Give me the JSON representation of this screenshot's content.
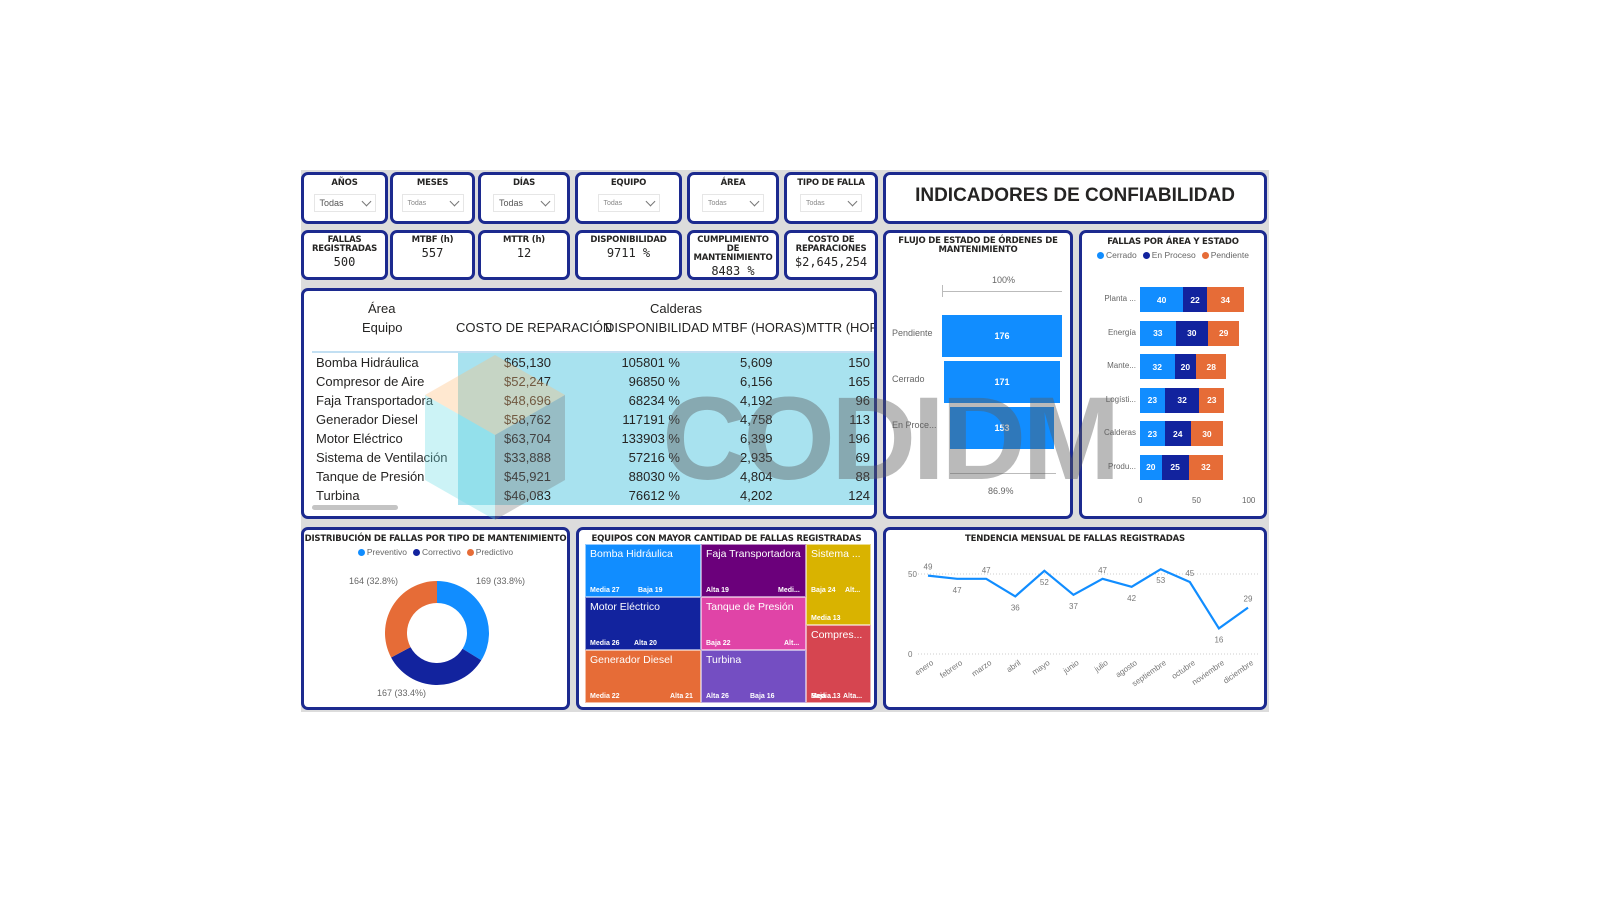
{
  "dashboard": {
    "title": "INDICADORES DE CONFIABILIDAD",
    "watermark": "CODIDM"
  },
  "slicers": [
    {
      "label": "AÑOS",
      "value": "Todas"
    },
    {
      "label": "MESES",
      "value": "Todas"
    },
    {
      "label": "DÍAS",
      "value": "Todas"
    },
    {
      "label": "EQUIPO",
      "value": "Todas"
    },
    {
      "label": "ÁREA",
      "value": "Todas"
    },
    {
      "label": "TIPO DE FALLA",
      "value": "Todas"
    }
  ],
  "kpis": [
    {
      "label": "FALLAS REGISTRADAS",
      "value": "500"
    },
    {
      "label": "MTBF (h)",
      "value": "557"
    },
    {
      "label": "MTTR (h)",
      "value": "12"
    },
    {
      "label": "DISPONIBILIDAD",
      "value": "9711 %"
    },
    {
      "label": "CUMPLIMIENTO DE MANTENIMIENTO",
      "value": "8483 %"
    },
    {
      "label": "COSTO DE REPARACIONES",
      "value": "$2,645,254"
    }
  ],
  "matrix": {
    "row_header_1": "Área",
    "row_header_2": "Equipo",
    "column_group": "Calderas",
    "columns": [
      "COSTO DE REPARACIÓN",
      "DISPONIBILIDAD",
      "MTBF (HORAS)",
      "MTTR (HOF"
    ],
    "rows": [
      {
        "equipo": "Bomba Hidráulica",
        "costo": "$65,130",
        "disp": "105801 %",
        "mtbf": "5,609",
        "mttr": "150"
      },
      {
        "equipo": "Compresor de Aire",
        "costo": "$52,247",
        "disp": "96850 %",
        "mtbf": "6,156",
        "mttr": "165"
      },
      {
        "equipo": "Faja Transportadora",
        "costo": "$48,696",
        "disp": "68234 %",
        "mtbf": "4,192",
        "mttr": "96"
      },
      {
        "equipo": "Generador Diesel",
        "costo": "$58,762",
        "disp": "117191 %",
        "mtbf": "4,758",
        "mttr": "113"
      },
      {
        "equipo": "Motor Eléctrico",
        "costo": "$63,704",
        "disp": "133903 %",
        "mtbf": "6,399",
        "mttr": "196"
      },
      {
        "equipo": "Sistema de Ventilación",
        "costo": "$33,888",
        "disp": "57216 %",
        "mtbf": "2,935",
        "mttr": "69"
      },
      {
        "equipo": "Tanque de Presión",
        "costo": "$45,921",
        "disp": "88030 %",
        "mtbf": "4,804",
        "mttr": "88"
      },
      {
        "equipo": "Turbina",
        "costo": "$46,083",
        "disp": "76612 %",
        "mtbf": "4,202",
        "mttr": "124"
      }
    ]
  },
  "chart_data": [
    {
      "type": "funnel",
      "title": "FLUJO DE ESTADO DE ÓRDENES DE MANTENIMIENTO",
      "categories": [
        "Pendiente",
        "Cerrado",
        "En Proce..."
      ],
      "values": [
        176,
        171,
        153
      ],
      "top_label": "100%",
      "bottom_label": "86.9%",
      "color": "#118dff"
    },
    {
      "type": "bar",
      "orientation": "horizontal",
      "stacked": true,
      "title": "FALLAS POR ÁREA Y ESTADO",
      "categories": [
        "Planta ...",
        "Energía",
        "Mante...",
        "Logísti...",
        "Calderas",
        "Produ..."
      ],
      "series": [
        {
          "name": "Cerrado",
          "color": "#118dff",
          "values": [
            40,
            33,
            32,
            23,
            23,
            20
          ]
        },
        {
          "name": "En Proceso",
          "color": "#12239e",
          "values": [
            22,
            30,
            20,
            32,
            24,
            25
          ]
        },
        {
          "name": "Pendiente",
          "color": "#e66c37",
          "values": [
            34,
            29,
            28,
            23,
            30,
            32
          ]
        }
      ],
      "xticks": [
        "0",
        "50",
        "100"
      ],
      "xlim": [
        0,
        100
      ],
      "legend_position": "top"
    },
    {
      "type": "pie",
      "donut": true,
      "title": "DISTRIBUCIÓN DE FALLAS POR TIPO DE MANTENIMIENTO",
      "categories": [
        "Preventivo",
        "Correctivo",
        "Predictivo"
      ],
      "values": [
        169,
        167,
        164
      ],
      "labels": [
        "169 (33.8%)",
        "167 (33.4%)",
        "164 (32.8%)"
      ],
      "colors": [
        "#118dff",
        "#12239e",
        "#e66c37"
      ],
      "legend_position": "top"
    },
    {
      "type": "treemap",
      "title": "EQUIPOS CON MAYOR CANTIDAD DE FALLAS REGISTRADAS",
      "groups": [
        {
          "name": "Bomba Hidráulica",
          "color": "#118dff",
          "children": [
            "Media 27",
            "Baja 19"
          ]
        },
        {
          "name": "Faja Transportadora",
          "color": "#6b007b",
          "children": [
            "Alta 19",
            "Medi..."
          ]
        },
        {
          "name": "Sistema ...",
          "color": "#d9b300",
          "children": [
            "Baja 24",
            "Alt...",
            "Media 13"
          ]
        },
        {
          "name": "Motor Eléctrico",
          "color": "#12239e",
          "children": [
            "Media 26",
            "Alta 20"
          ]
        },
        {
          "name": "Tanque de Presión",
          "color": "#e044a7",
          "children": [
            "Baja 22",
            "Alt..."
          ]
        },
        {
          "name": "Compres...",
          "color": "#d64550",
          "children": [
            "Baja ...",
            "Alta...",
            "Media 13"
          ]
        },
        {
          "name": "Generador Diesel",
          "color": "#e66c37",
          "children": [
            "Media 22",
            "Alta 21"
          ]
        },
        {
          "name": "Turbina",
          "color": "#744ec2",
          "children": [
            "Alta 26",
            "Baja 16"
          ]
        }
      ]
    },
    {
      "type": "line",
      "title": "TENDENCIA MENSUAL DE FALLAS REGISTRADAS",
      "categories": [
        "enero",
        "febrero",
        "marzo",
        "abril",
        "mayo",
        "junio",
        "julio",
        "agosto",
        "septiembre",
        "octubre",
        "noviembre",
        "diciembre"
      ],
      "values": [
        49,
        47,
        47,
        36,
        52,
        37,
        47,
        42,
        53,
        45,
        16,
        29
      ],
      "yticks": [
        "0",
        "50"
      ],
      "ylim": [
        0,
        55
      ],
      "grid": true,
      "color": "#118dff"
    }
  ]
}
